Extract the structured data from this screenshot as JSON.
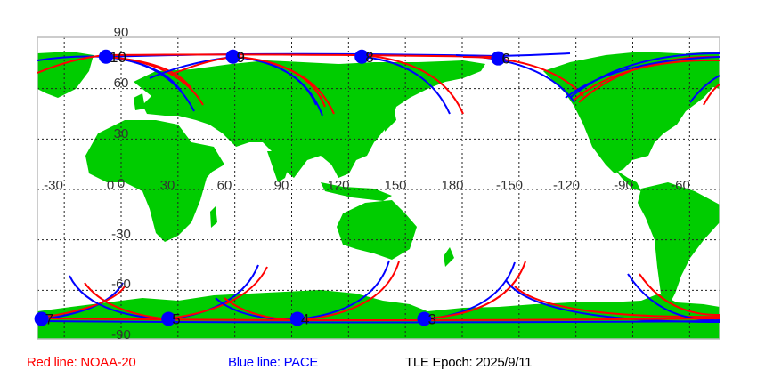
{
  "map": {
    "projection": "equirectangular",
    "land_color": "#00cc00",
    "grid_style": "dotted",
    "lat_labels": [
      "90",
      "60",
      "30",
      "0",
      "-30",
      "-60",
      "-90"
    ],
    "lon_labels": [
      "-30",
      "0",
      "30",
      "60",
      "90",
      "120",
      "150",
      "180",
      "-150",
      "-120",
      "-90",
      "-60"
    ],
    "markers": [
      {
        "label": "10",
        "lon": -8,
        "lat": 79
      },
      {
        "label": "9",
        "lon": 59,
        "lat": 79
      },
      {
        "label": "8",
        "lon": 127,
        "lat": 79
      },
      {
        "label": "6",
        "lon": -161,
        "lat": 78
      },
      {
        "label": "7",
        "lon": -42,
        "lat": -77
      },
      {
        "label": "5",
        "lon": 25,
        "lat": -77
      },
      {
        "label": "4",
        "lon": 93,
        "lat": -77
      },
      {
        "label": "3",
        "lon": 160,
        "lat": -77
      }
    ],
    "marker_color": "#0000ff"
  },
  "legend": {
    "red": {
      "text": "Red line: NOAA-20",
      "color": "#ff0000"
    },
    "blue": {
      "text": "Blue line: PACE",
      "color": "#0000ff"
    },
    "epoch": "TLE Epoch: 2025/9/11"
  }
}
